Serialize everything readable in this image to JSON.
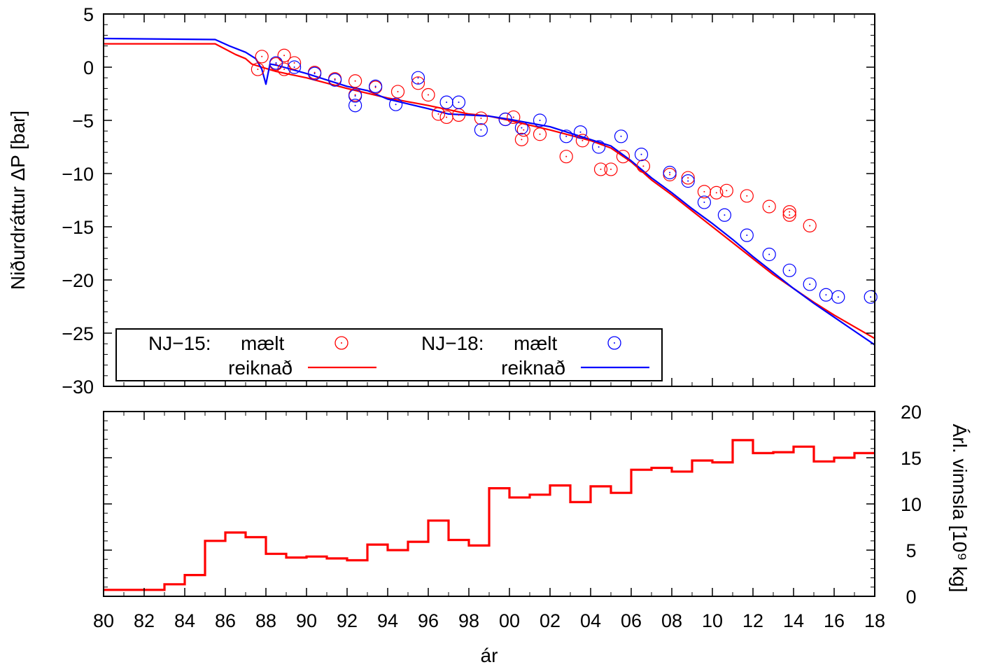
{
  "chart_data": [
    {
      "type": "scatter+line",
      "ylabel": "Niðurdráttur ΔP [bar]",
      "xlim": [
        1980,
        2018
      ],
      "ylim": [
        -30,
        5
      ],
      "yticks": [
        "5",
        "0",
        "−5",
        "−10",
        "−15",
        "−20",
        "−25",
        "−30"
      ],
      "yticks_values": [
        5,
        0,
        -5,
        -10,
        -15,
        -20,
        -25,
        -30
      ],
      "grid": false,
      "legend": {
        "placement": "bottom-left",
        "groups": [
          {
            "name": "NJ−15:",
            "measured_label": "mælt",
            "computed_label": "reiknað"
          },
          {
            "name": "NJ−18:",
            "measured_label": "mælt",
            "computed_label": "reiknað"
          }
        ]
      },
      "series": [
        {
          "name": "NJ−15: mælt",
          "kind": "scatter",
          "color": "#ff0000",
          "points": [
            [
              1987.6,
              -0.2
            ],
            [
              1987.8,
              1.0
            ],
            [
              1988.5,
              0.3
            ],
            [
              1988.9,
              -0.2
            ],
            [
              1988.9,
              1.1
            ],
            [
              1989.4,
              0.4
            ],
            [
              1990.4,
              -0.5
            ],
            [
              1991.4,
              -1.1
            ],
            [
              1992.4,
              -1.3
            ],
            [
              1992.4,
              -2.6
            ],
            [
              1993.4,
              -1.9
            ],
            [
              1994.5,
              -2.3
            ],
            [
              1995.5,
              -1.5
            ],
            [
              1996.0,
              -2.6
            ],
            [
              1996.5,
              -4.4
            ],
            [
              1996.9,
              -4.7
            ],
            [
              1997.5,
              -4.5
            ],
            [
              1998.6,
              -4.8
            ],
            [
              1999.8,
              -4.9
            ],
            [
              2000.2,
              -4.7
            ],
            [
              2000.6,
              -6.8
            ],
            [
              2000.7,
              -5.9
            ],
            [
              2001.5,
              -6.3
            ],
            [
              2002.8,
              -8.4
            ],
            [
              2003.6,
              -6.9
            ],
            [
              2004.5,
              -9.6
            ],
            [
              2005.0,
              -9.6
            ],
            [
              2005.6,
              -8.4
            ],
            [
              2006.6,
              -9.3
            ],
            [
              2007.9,
              -10.1
            ],
            [
              2008.8,
              -10.4
            ],
            [
              2009.6,
              -11.7
            ],
            [
              2010.2,
              -11.8
            ],
            [
              2010.7,
              -11.6
            ],
            [
              2011.7,
              -12.1
            ],
            [
              2012.8,
              -13.1
            ],
            [
              2013.8,
              -13.6
            ],
            [
              2013.8,
              -13.9
            ],
            [
              2014.8,
              -14.9
            ]
          ]
        },
        {
          "name": "NJ−15: reiknað",
          "kind": "line",
          "color": "#ff0000",
          "points": [
            [
              1980,
              2.2
            ],
            [
              1985.5,
              2.2
            ],
            [
              1986.5,
              1.2
            ],
            [
              1987.0,
              0.8
            ],
            [
              1987.3,
              0.3
            ],
            [
              1987.8,
              0.0
            ],
            [
              1988.5,
              -0.4
            ],
            [
              1990,
              -1.0
            ],
            [
              1992,
              -2.0
            ],
            [
              1994,
              -2.9
            ],
            [
              1996,
              -3.6
            ],
            [
              1998,
              -4.4
            ],
            [
              1999,
              -4.6
            ],
            [
              2000,
              -5.0
            ],
            [
              2002,
              -5.9
            ],
            [
              2004,
              -6.9
            ],
            [
              2005,
              -7.6
            ],
            [
              2006,
              -8.9
            ],
            [
              2007,
              -10.6
            ],
            [
              2008,
              -12.0
            ],
            [
              2009,
              -13.5
            ],
            [
              2010,
              -15.0
            ],
            [
              2011,
              -16.5
            ],
            [
              2012,
              -18.0
            ],
            [
              2013,
              -19.5
            ],
            [
              2014,
              -20.8
            ],
            [
              2015,
              -22.1
            ],
            [
              2016,
              -23.3
            ],
            [
              2017,
              -24.4
            ],
            [
              2018,
              -25.5
            ]
          ]
        },
        {
          "name": "NJ−18: mælt",
          "kind": "scatter",
          "color": "#0000ff",
          "points": [
            [
              1988.5,
              0.4
            ],
            [
              1989.4,
              0.0
            ],
            [
              1990.4,
              -0.6
            ],
            [
              1991.4,
              -1.2
            ],
            [
              1992.4,
              -2.7
            ],
            [
              1992.4,
              -3.6
            ],
            [
              1993.4,
              -1.8
            ],
            [
              1994.4,
              -3.5
            ],
            [
              1995.5,
              -1.0
            ],
            [
              1996.9,
              -3.3
            ],
            [
              1997.5,
              -3.3
            ],
            [
              1998.6,
              -5.9
            ],
            [
              1999.8,
              -4.9
            ],
            [
              2000.6,
              -5.7
            ],
            [
              2001.5,
              -5.0
            ],
            [
              2002.8,
              -6.5
            ],
            [
              2003.5,
              -6.1
            ],
            [
              2004.4,
              -7.5
            ],
            [
              2005.5,
              -6.5
            ],
            [
              2006.5,
              -8.2
            ],
            [
              2007.9,
              -9.9
            ],
            [
              2008.8,
              -10.7
            ],
            [
              2009.6,
              -12.7
            ],
            [
              2010.6,
              -13.9
            ],
            [
              2011.7,
              -15.8
            ],
            [
              2012.8,
              -17.6
            ],
            [
              2013.8,
              -19.1
            ],
            [
              2014.8,
              -20.4
            ],
            [
              2015.6,
              -21.4
            ],
            [
              2016.2,
              -21.6
            ],
            [
              2017.8,
              -21.6
            ]
          ]
        },
        {
          "name": "NJ−18: reiknað",
          "kind": "line",
          "color": "#0000ff",
          "points": [
            [
              1980,
              2.7
            ],
            [
              1985.5,
              2.6
            ],
            [
              1986.2,
              2.0
            ],
            [
              1987.0,
              1.4
            ],
            [
              1987.5,
              0.8
            ],
            [
              1987.8,
              -0.2
            ],
            [
              1988.0,
              -1.6
            ],
            [
              1988.2,
              0.3
            ],
            [
              1988.5,
              0.2
            ],
            [
              1990,
              -0.6
            ],
            [
              1992,
              -1.8
            ],
            [
              1993,
              -2.2
            ],
            [
              1994,
              -3.0
            ],
            [
              1996,
              -3.9
            ],
            [
              1997,
              -4.4
            ],
            [
              1998,
              -4.5
            ],
            [
              1999,
              -4.6
            ],
            [
              2000,
              -4.9
            ],
            [
              2002,
              -5.6
            ],
            [
              2004,
              -6.8
            ],
            [
              2005,
              -7.4
            ],
            [
              2006,
              -8.8
            ],
            [
              2007,
              -10.4
            ],
            [
              2008,
              -11.8
            ],
            [
              2009,
              -13.3
            ],
            [
              2010,
              -14.7
            ],
            [
              2011,
              -16.2
            ],
            [
              2012,
              -17.8
            ],
            [
              2013,
              -19.3
            ],
            [
              2014,
              -20.8
            ],
            [
              2015,
              -22.2
            ],
            [
              2016,
              -23.5
            ],
            [
              2017,
              -24.8
            ],
            [
              2018,
              -26.1
            ]
          ]
        }
      ]
    },
    {
      "type": "step",
      "xlabel": "ár",
      "ylabel": "Árl. vinnsla [10⁹ kg]",
      "xlim": [
        1980,
        2018
      ],
      "ylim": [
        0,
        20
      ],
      "xticks": [
        "80",
        "82",
        "84",
        "86",
        "88",
        "90",
        "92",
        "94",
        "96",
        "98",
        "00",
        "02",
        "04",
        "06",
        "08",
        "10",
        "12",
        "14",
        "16",
        "18"
      ],
      "xticks_values": [
        1980,
        1982,
        1984,
        1986,
        1988,
        1990,
        1992,
        1994,
        1996,
        1998,
        2000,
        2002,
        2004,
        2006,
        2008,
        2010,
        2012,
        2014,
        2016,
        2018
      ],
      "yticks": [
        "0",
        "5",
        "10",
        "15",
        "20"
      ],
      "yticks_values": [
        0,
        5,
        10,
        15,
        20
      ],
      "grid": false,
      "series": [
        {
          "name": "Árl. vinnsla",
          "color": "#ff0000",
          "x": [
            1980,
            1981,
            1982,
            1983,
            1984,
            1985,
            1986,
            1987,
            1988,
            1989,
            1990,
            1991,
            1992,
            1993,
            1994,
            1995,
            1996,
            1997,
            1998,
            1999,
            2000,
            2001,
            2002,
            2003,
            2004,
            2005,
            2006,
            2007,
            2008,
            2009,
            2010,
            2011,
            2012,
            2013,
            2014,
            2015,
            2016,
            2017
          ],
          "values": [
            0.7,
            0.7,
            0.7,
            1.3,
            2.3,
            6.0,
            6.9,
            6.4,
            4.6,
            4.2,
            4.3,
            4.1,
            3.9,
            5.6,
            5.0,
            5.9,
            8.2,
            6.1,
            5.5,
            11.7,
            10.7,
            11.0,
            12.0,
            10.2,
            11.9,
            11.2,
            13.7,
            13.9,
            13.5,
            14.7,
            14.5,
            16.9,
            15.5,
            15.6,
            16.2,
            14.6,
            15.0,
            15.5
          ]
        }
      ]
    }
  ]
}
